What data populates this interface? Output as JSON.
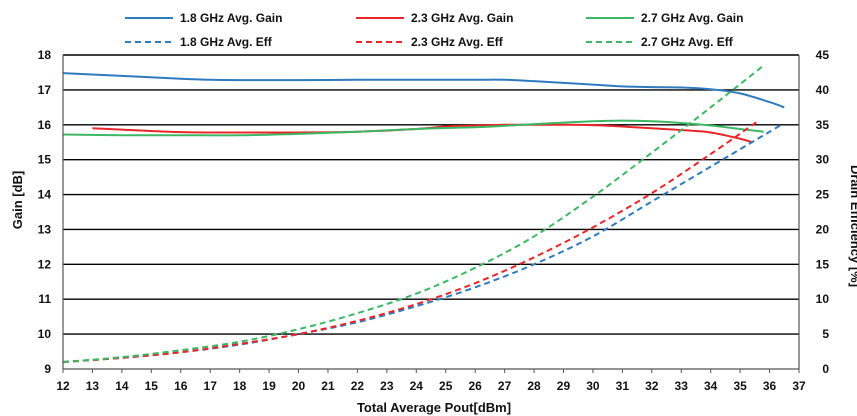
{
  "chart_data": {
    "type": "line",
    "xlabel": "Total Average Pout[dBm]",
    "ylabel": "Gain [dB]",
    "y2label": "Drain Efficiency [%]",
    "xlim": [
      12,
      37
    ],
    "ylim": [
      9,
      18
    ],
    "y2lim": [
      0,
      45
    ],
    "x_ticks": [
      12,
      13,
      14,
      15,
      16,
      17,
      18,
      19,
      20,
      21,
      22,
      23,
      24,
      25,
      26,
      27,
      28,
      29,
      30,
      31,
      32,
      33,
      34,
      35,
      36,
      37
    ],
    "y_ticks": [
      9,
      10,
      11,
      12,
      13,
      14,
      15,
      16,
      17,
      18
    ],
    "y2_ticks": [
      0,
      5,
      10,
      15,
      20,
      25,
      30,
      35,
      40,
      45
    ],
    "grid": "horizontal",
    "legend_position": "top",
    "series": [
      {
        "name": "1.8 GHz Avg. Gain",
        "axis": "left",
        "color": "#2f7bbf",
        "dash": "solid",
        "x": [
          12,
          14,
          16,
          17,
          18,
          20,
          22,
          24,
          26,
          27,
          28,
          29,
          30,
          31,
          32,
          33,
          34,
          35,
          36,
          36.5
        ],
        "y": [
          17.48,
          17.4,
          17.32,
          17.29,
          17.28,
          17.28,
          17.29,
          17.29,
          17.29,
          17.29,
          17.25,
          17.2,
          17.15,
          17.1,
          17.08,
          17.07,
          17.02,
          16.9,
          16.65,
          16.5
        ]
      },
      {
        "name": "2.3 GHz Avg. Gain",
        "axis": "left",
        "color": "#e8262a",
        "dash": "solid",
        "x": [
          13,
          14,
          15,
          16,
          17,
          18,
          20,
          22,
          24,
          25,
          26,
          27,
          28,
          29,
          30,
          31,
          32,
          33,
          34,
          35,
          35.4
        ],
        "y": [
          15.9,
          15.86,
          15.82,
          15.79,
          15.78,
          15.78,
          15.78,
          15.8,
          15.88,
          15.95,
          15.98,
          16.0,
          16.0,
          16.0,
          15.99,
          15.95,
          15.9,
          15.85,
          15.78,
          15.6,
          15.5
        ]
      },
      {
        "name": "2.7 GHz Avg. Gain",
        "axis": "left",
        "color": "#3cb764",
        "dash": "solid",
        "x": [
          12,
          14,
          16,
          18,
          20,
          22,
          24,
          26,
          27,
          28,
          29,
          30,
          31,
          32,
          33,
          34,
          35,
          35.8
        ],
        "y": [
          15.72,
          15.7,
          15.7,
          15.7,
          15.74,
          15.8,
          15.88,
          15.93,
          15.97,
          16.02,
          16.06,
          16.1,
          16.12,
          16.1,
          16.05,
          15.98,
          15.88,
          15.8
        ]
      },
      {
        "name": "1.8 GHz Avg. Eff",
        "axis": "right",
        "color": "#2f7bbf",
        "dash": "dashed",
        "x": [
          12,
          14,
          16,
          18,
          20,
          22,
          24,
          26,
          28,
          30,
          32,
          34,
          36.4
        ],
        "y": [
          1.0,
          1.6,
          2.4,
          3.5,
          5.0,
          6.7,
          9.0,
          11.7,
          15.0,
          19.0,
          24.0,
          29.0,
          35.0
        ]
      },
      {
        "name": "2.3 GHz Avg. Eff",
        "axis": "right",
        "color": "#e8262a",
        "dash": "dashed",
        "x": [
          12,
          14,
          16,
          18,
          20,
          22,
          24,
          26,
          28,
          30,
          32,
          34,
          35.6
        ],
        "y": [
          1.0,
          1.6,
          2.4,
          3.6,
          5.0,
          6.9,
          9.3,
          12.3,
          16.0,
          20.3,
          25.2,
          30.8,
          35.5
        ]
      },
      {
        "name": "2.7 GHz Avg. Eff",
        "axis": "right",
        "color": "#3cb764",
        "dash": "dashed",
        "x": [
          12,
          14,
          16,
          18,
          20,
          22,
          24,
          26,
          28,
          30,
          32,
          34,
          35.8
        ],
        "y": [
          1.0,
          1.7,
          2.7,
          3.9,
          5.7,
          8.0,
          10.8,
          14.5,
          19.0,
          24.7,
          31.0,
          37.5,
          43.5
        ]
      }
    ]
  }
}
